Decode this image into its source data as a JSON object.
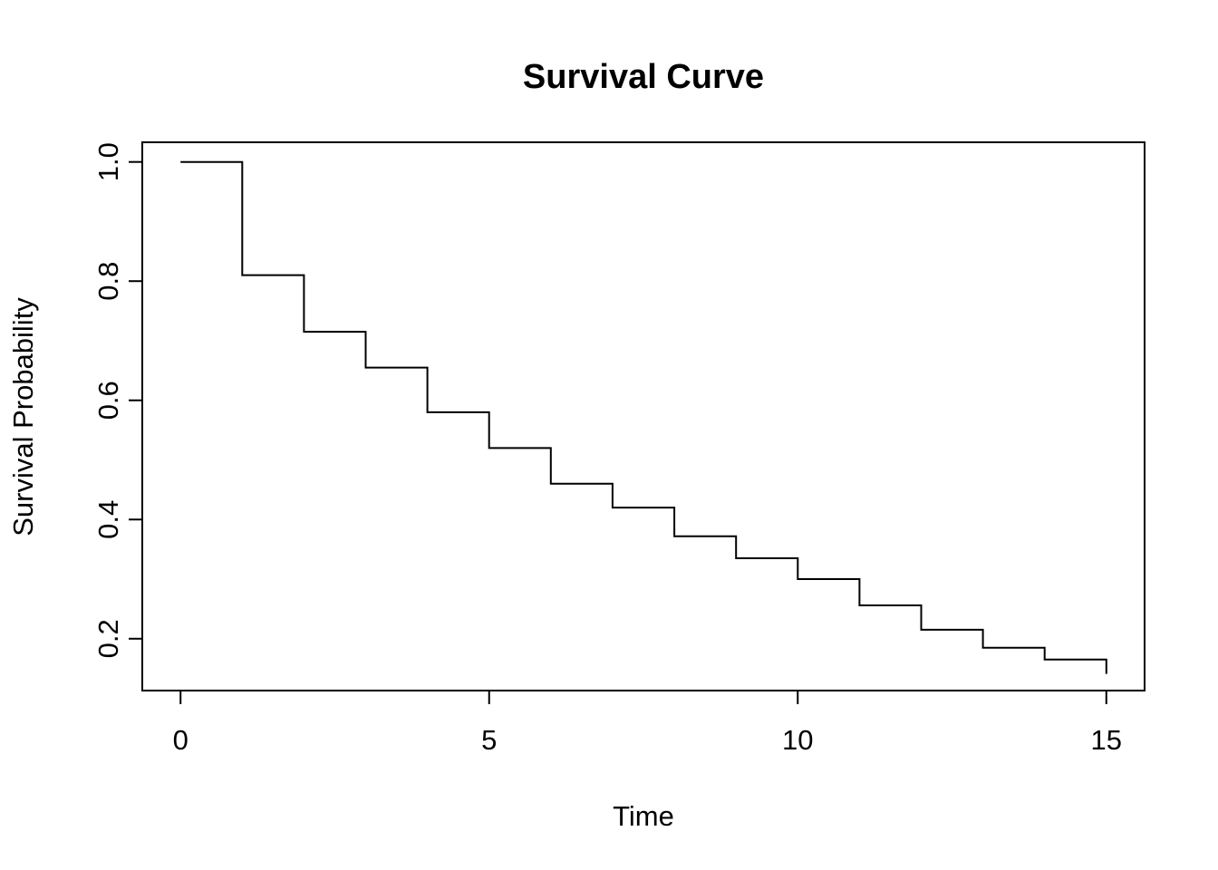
{
  "figure": {
    "background_color": "#ffffff",
    "foreground_color": "#000000"
  },
  "chart_data": {
    "type": "line",
    "subtype": "step-post",
    "title": "Survival Curve",
    "xlabel": "Time",
    "ylabel": "Survival Probability",
    "x": [
      0,
      1,
      2,
      3,
      4,
      5,
      6,
      7,
      8,
      9,
      10,
      11,
      12,
      13,
      14,
      15
    ],
    "y": [
      1.0,
      0.81,
      0.715,
      0.655,
      0.58,
      0.52,
      0.46,
      0.42,
      0.372,
      0.335,
      0.3,
      0.256,
      0.215,
      0.185,
      0.165,
      0.141
    ],
    "x_ticks": [
      0,
      5,
      10,
      15
    ],
    "x_tick_labels": [
      "0",
      "5",
      "10",
      "15"
    ],
    "y_ticks": [
      0.2,
      0.4,
      0.6,
      0.8,
      1.0
    ],
    "y_tick_labels": [
      "0.2",
      "0.4",
      "0.6",
      "0.8",
      "1.0"
    ],
    "xlim": [
      -0.62,
      15.62
    ],
    "ylim": [
      0.113,
      1.033
    ],
    "grid": false,
    "legend": null,
    "line_color": "#000000",
    "axis_color": "#000000"
  }
}
